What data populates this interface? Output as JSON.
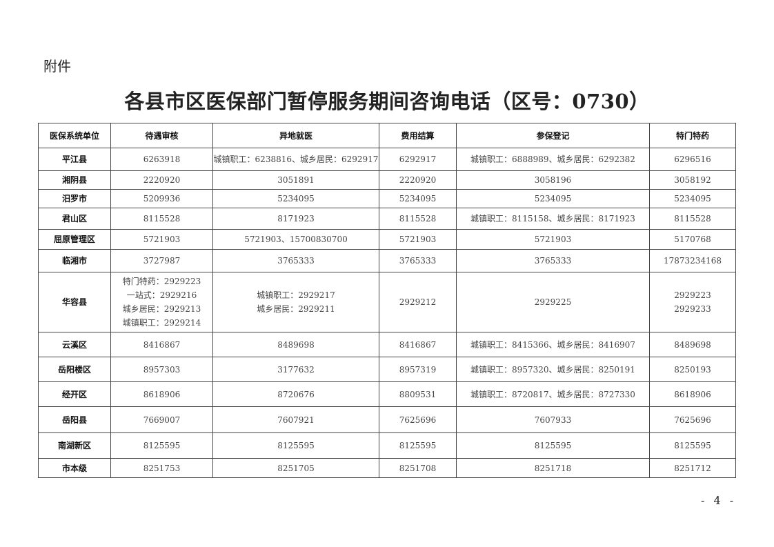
{
  "attachment_label": "附件",
  "title": "各县市区医保部门暂停服务期间咨询电话（区号：0730）",
  "table": {
    "headers": [
      "医保系统单位",
      "待遇审核",
      "异地就医",
      "费用结算",
      "参保登记",
      "特门特药"
    ],
    "rows": [
      {
        "unit": "平江县",
        "cells": [
          [
            "6263918"
          ],
          [
            "城镇职工：6238816、城乡居民：6292917"
          ],
          [
            "6292917"
          ],
          [
            "城镇职工：6888989、城乡居民：6292382"
          ],
          [
            "6296516"
          ]
        ]
      },
      {
        "unit": "湘阴县",
        "cells": [
          [
            "2220920"
          ],
          [
            "3051891"
          ],
          [
            "2220920"
          ],
          [
            "3058196"
          ],
          [
            "3058192"
          ]
        ]
      },
      {
        "unit": "汨罗市",
        "cells": [
          [
            "5209936"
          ],
          [
            "5234095"
          ],
          [
            "5234095"
          ],
          [
            "5234095"
          ],
          [
            "5234095"
          ]
        ]
      },
      {
        "unit": "君山区",
        "cells": [
          [
            "8115528"
          ],
          [
            "8171923"
          ],
          [
            "8115528"
          ],
          [
            "城镇职工：8115158、城乡居民：8171923"
          ],
          [
            "8115528"
          ]
        ]
      },
      {
        "unit": "屈原管理区",
        "cells": [
          [
            "5721903"
          ],
          [
            "5721903、15700830700"
          ],
          [
            "5721903"
          ],
          [
            "5721903"
          ],
          [
            "5170768"
          ]
        ]
      },
      {
        "unit": "临湘市",
        "cells": [
          [
            "3727987"
          ],
          [
            "3765333"
          ],
          [
            "3765333"
          ],
          [
            "3765333"
          ],
          [
            "17873234168"
          ]
        ]
      },
      {
        "unit": "华容县",
        "cells": [
          [
            "特门特药：2929223",
            "一站式：2929216",
            "城乡居民：2929213",
            "城镇职工：2929214"
          ],
          [
            "城镇职工：2929217",
            "城乡居民：2929211"
          ],
          [
            "2929212"
          ],
          [
            "2929225"
          ],
          [
            "2929223",
            "2929233"
          ]
        ]
      },
      {
        "unit": "云溪区",
        "cells": [
          [
            "8416867"
          ],
          [
            "8489698"
          ],
          [
            "8416867"
          ],
          [
            "城镇职工：8415366、城乡居民：8416907"
          ],
          [
            "8489698"
          ]
        ]
      },
      {
        "unit": "岳阳楼区",
        "cells": [
          [
            "8957303"
          ],
          [
            "3177632"
          ],
          [
            "8957319"
          ],
          [
            "城镇职工：8957320、城乡居民：8250191"
          ],
          [
            "8250193"
          ]
        ]
      },
      {
        "unit": "经开区",
        "cells": [
          [
            "8618906"
          ],
          [
            "8720676"
          ],
          [
            "8809531"
          ],
          [
            "城镇职工：8720817、城乡居民：8727330"
          ],
          [
            "8618906"
          ]
        ]
      },
      {
        "unit": "岳阳县",
        "cells": [
          [
            "7669007"
          ],
          [
            "7607921"
          ],
          [
            "7625696"
          ],
          [
            "7607933"
          ],
          [
            "7625696"
          ]
        ]
      },
      {
        "unit": "南湖新区",
        "cells": [
          [
            "8125595"
          ],
          [
            "8125595"
          ],
          [
            "8125595"
          ],
          [
            "8125595"
          ],
          [
            "8125595"
          ]
        ]
      },
      {
        "unit": "市本级",
        "cells": [
          [
            "8251753"
          ],
          [
            "8251705"
          ],
          [
            "8251708"
          ],
          [
            "8251718"
          ],
          [
            "8251712"
          ]
        ]
      }
    ]
  },
  "page_number": "- 4 -"
}
